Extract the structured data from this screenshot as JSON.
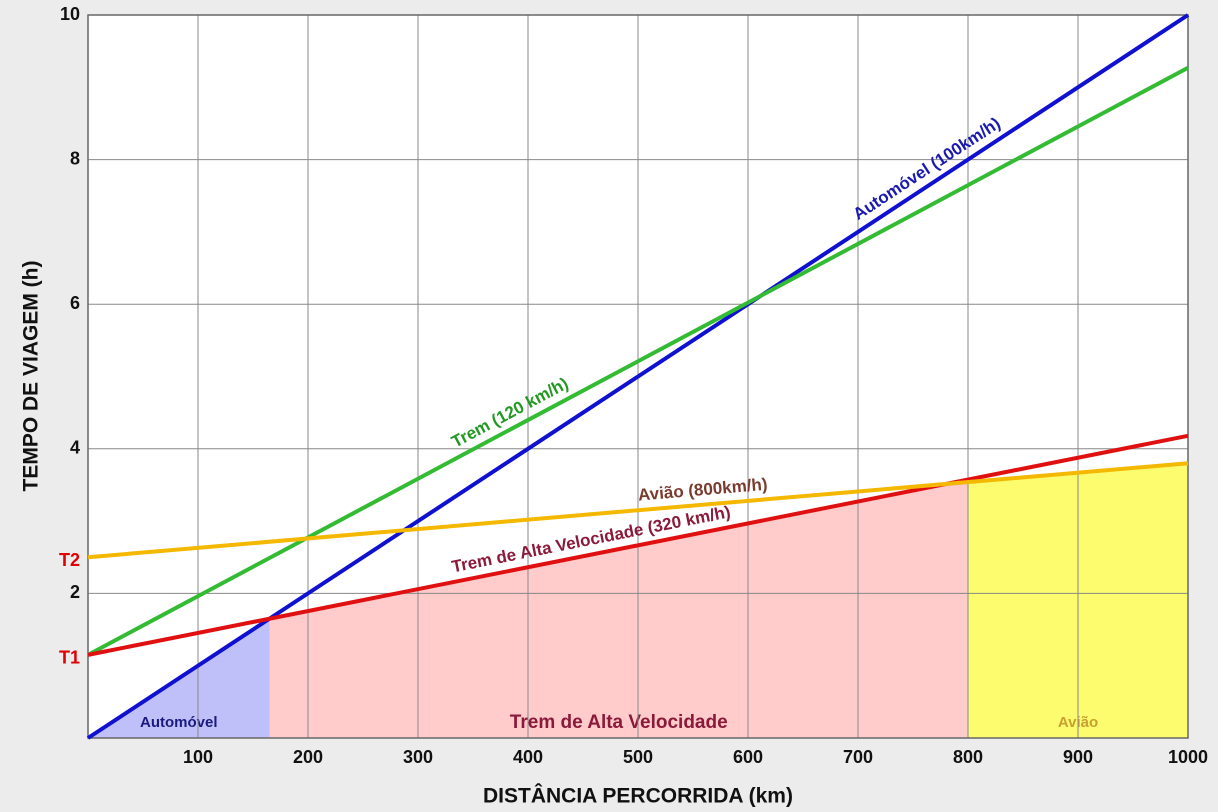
{
  "chart_data": {
    "type": "line",
    "x_label": "DISTÂNCIA PERCORRIDA (km)",
    "y_label": "TEMPO DE VIAGEM (h)",
    "xlim": [
      0,
      1000
    ],
    "xticks": [
      100,
      200,
      300,
      400,
      500,
      600,
      700,
      800,
      900,
      1000
    ],
    "ylim": [
      0,
      10
    ],
    "yticks": [
      2,
      4,
      6,
      8,
      10
    ],
    "grid": true,
    "annotations": [
      {
        "label": "T1",
        "value": 1.15,
        "color": "#e00000"
      },
      {
        "label": "T2",
        "value": 2.5,
        "color": "#e00000"
      }
    ],
    "series": [
      {
        "name": "Automóvel (100km/h)",
        "color": "#1010d0",
        "label_color": "#1a1ab0",
        "x": [
          0,
          1000
        ],
        "y": [
          0,
          10
        ]
      },
      {
        "name": "Trem (120 km/h)",
        "color": "#33bb33",
        "label_color": "#229922",
        "x": [
          0,
          1000
        ],
        "y": [
          1.15,
          9.27
        ]
      },
      {
        "name": "Trem de Alta Velocidade (320 km/h)",
        "color": "#e01010",
        "label_color": "#8b1a3a",
        "x": [
          0,
          1000
        ],
        "y": [
          1.15,
          4.18
        ]
      },
      {
        "name": "Avião (800km/h)",
        "color": "#f5b800",
        "label_color": "#7a3b2e",
        "x": [
          0,
          1000
        ],
        "y": [
          2.5,
          3.8
        ]
      }
    ],
    "regions": [
      {
        "label": "Automóvel",
        "from": 0,
        "to": 165,
        "color": "#b4b4f8",
        "label_color": "#1a1a80"
      },
      {
        "label": "Trem de Alta Velocidade",
        "from": 165,
        "to": 800,
        "color": "#ffc2c2",
        "label_color": "#8b1a3a"
      },
      {
        "label": "Avião",
        "from": 800,
        "to": 1000,
        "color": "#fbfb55",
        "label_color": "#c8a030"
      }
    ]
  }
}
